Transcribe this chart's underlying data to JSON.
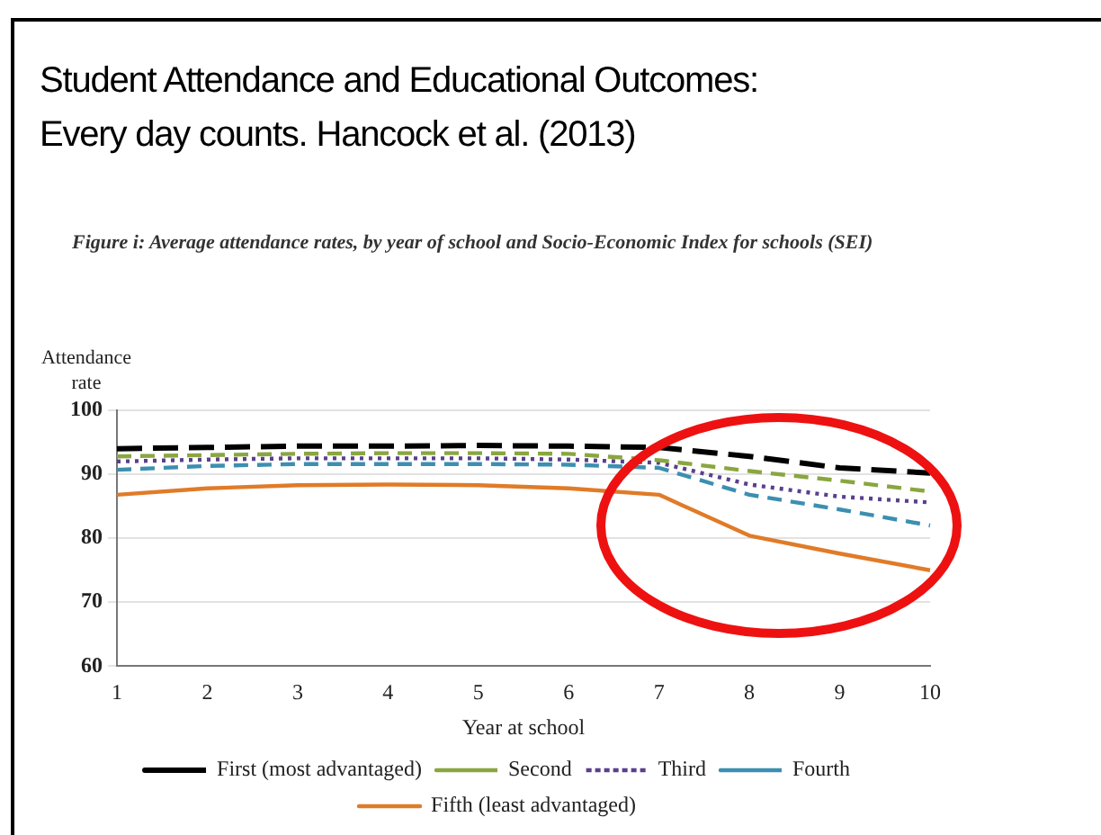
{
  "chart_data": {
    "type": "line",
    "title": "Student Attendance and Educational Outcomes:\nEvery day counts. Hancock et al. (2013)",
    "subtitle": "Figure i: Average attendance rates, by year of school and Socio-Economic Index for schools (SEI)",
    "xlabel": "Year at school",
    "ylabel": "Attendance rate",
    "categories": [
      "1",
      "2",
      "3",
      "4",
      "5",
      "6",
      "7",
      "8",
      "9",
      "10"
    ],
    "series": [
      {
        "name": "First (most advantaged)",
        "color": "#000000",
        "line_style": "dashed",
        "values": [
          94,
          94.2,
          94.4,
          94.4,
          94.5,
          94.4,
          94.2,
          92.8,
          91,
          90.2
        ]
      },
      {
        "name": "Second",
        "color": "#8aa640",
        "line_style": "dashed",
        "values": [
          92.8,
          93,
          93.2,
          93.3,
          93.3,
          93.2,
          92.2,
          90.5,
          89,
          87.3
        ]
      },
      {
        "name": "Third",
        "color": "#5b3f8c",
        "line_style": "dotted",
        "values": [
          92,
          92.3,
          92.5,
          92.5,
          92.5,
          92.3,
          91.8,
          88.4,
          86.5,
          85.6
        ]
      },
      {
        "name": "Fourth",
        "color": "#3c8fb0",
        "line_style": "dashed",
        "values": [
          90.7,
          91.3,
          91.6,
          91.6,
          91.6,
          91.5,
          91,
          86.8,
          84.5,
          82
        ]
      },
      {
        "name": "Fifth (least advantaged)",
        "color": "#e07b28",
        "line_style": "solid",
        "values": [
          86.8,
          87.8,
          88.3,
          88.4,
          88.3,
          87.8,
          86.8,
          80.4,
          77.6,
          75
        ]
      }
    ],
    "ylim": [
      60,
      100
    ],
    "yticks": [
      60,
      70,
      80,
      90,
      100
    ],
    "grid": "y",
    "legend": "bottom",
    "marker": "none"
  }
}
